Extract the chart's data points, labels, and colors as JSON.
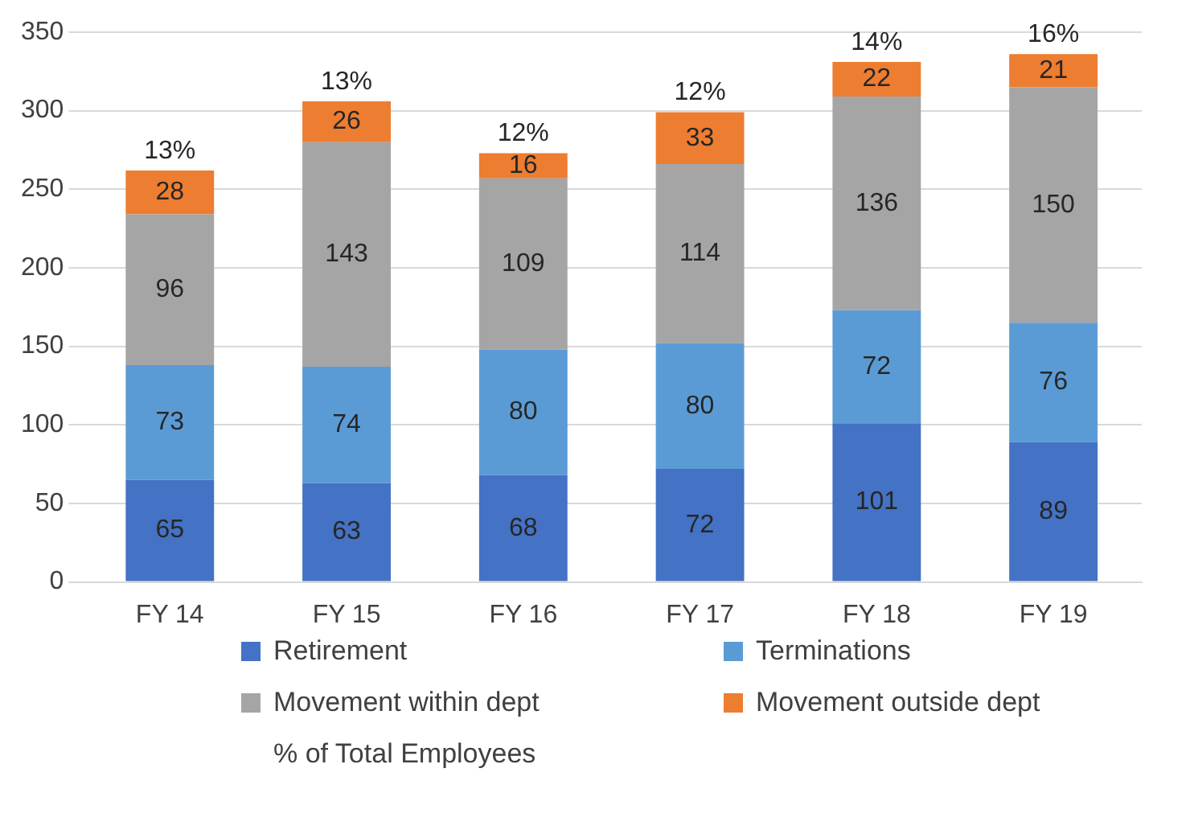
{
  "chart_data": {
    "type": "bar",
    "stacked": true,
    "categories": [
      "FY 14",
      "FY 15",
      "FY 16",
      "FY 17",
      "FY 18",
      "FY 19"
    ],
    "series": [
      {
        "name": "Retirement",
        "color": "#4472c4",
        "values": [
          65,
          63,
          68,
          72,
          101,
          89
        ]
      },
      {
        "name": "Terminations",
        "color": "#5b9bd5",
        "values": [
          73,
          74,
          80,
          80,
          72,
          76
        ]
      },
      {
        "name": "Movement within dept",
        "color": "#a5a5a5",
        "values": [
          96,
          143,
          109,
          114,
          136,
          150
        ]
      },
      {
        "name": "Movement outside dept",
        "color": "#ed7d31",
        "values": [
          28,
          26,
          16,
          33,
          22,
          21
        ]
      }
    ],
    "annotations": [
      "% of Total Employees",
      {
        "text": "13%",
        "x": "FY 14",
        "y": 262
      },
      {
        "text": "13%",
        "x": "FY 15",
        "y": 306
      },
      {
        "text": "12%",
        "x": "FY 16",
        "y": 273
      },
      {
        "text": "12%",
        "x": "FY 17",
        "y": 299
      },
      {
        "text": "14%",
        "x": "FY 18",
        "y": 331
      },
      {
        "text": "16%",
        "x": "FY 19",
        "y": 336
      }
    ],
    "ylim": [
      0,
      350
    ],
    "yticks": [
      0,
      50,
      100,
      150,
      200,
      250,
      300,
      350
    ],
    "grid": "y",
    "legend": "bottom",
    "data_labels": true
  }
}
